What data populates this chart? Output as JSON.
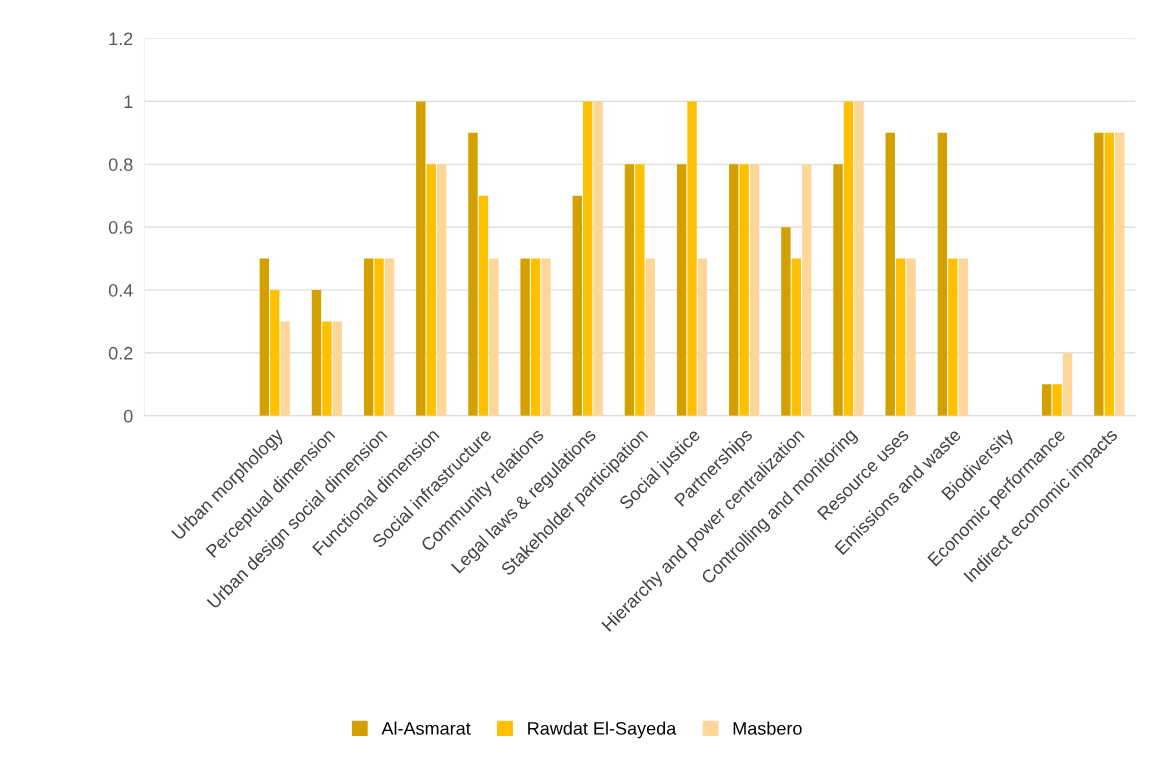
{
  "chart_data": {
    "type": "bar",
    "categories": [
      null,
      null,
      "Urban morphology",
      "Perceptual dimension",
      "Urban design social dimension",
      "Functional dimension",
      "Social infrastructure",
      "Community relations",
      "Legal laws & regulations",
      "Stakeholder participation",
      "Social justice",
      "Partnerships",
      "Hierarchy and power centralization",
      "Controlling and monitoring",
      "Resource uses",
      "Emissions and waste",
      "Biodiversity",
      "Economic performance",
      "Indirect economic impacts"
    ],
    "series": [
      {
        "name": "Al-Asmarat",
        "color": "#d4a000",
        "values": [
          null,
          null,
          0.5,
          0.4,
          0.5,
          1,
          0.9,
          0.5,
          0.7,
          0.8,
          0.8,
          0.8,
          0.6,
          0.8,
          0.9,
          0.9,
          0,
          0.1,
          0.9
        ]
      },
      {
        "name": "Rawdat El-Sayeda",
        "color": "#ffc000",
        "values": [
          null,
          null,
          0.4,
          0.3,
          0.5,
          0.8,
          0.7,
          0.5,
          1,
          0.8,
          1,
          0.8,
          0.5,
          1,
          0.5,
          0.5,
          0,
          0.1,
          0.9
        ]
      },
      {
        "name": "Masbero",
        "color": "#ffd699",
        "values": [
          null,
          null,
          0.3,
          0.3,
          0.5,
          0.8,
          0.5,
          0.5,
          1,
          0.5,
          0.5,
          0.8,
          0.8,
          1,
          0.5,
          0.5,
          0,
          0.2,
          0.9
        ]
      }
    ],
    "ylim": [
      0,
      1.2
    ],
    "yticks": [
      0,
      0.2,
      0.4,
      0.6,
      0.8,
      1,
      1.2
    ],
    "grid": "y",
    "legend": "bottom"
  }
}
